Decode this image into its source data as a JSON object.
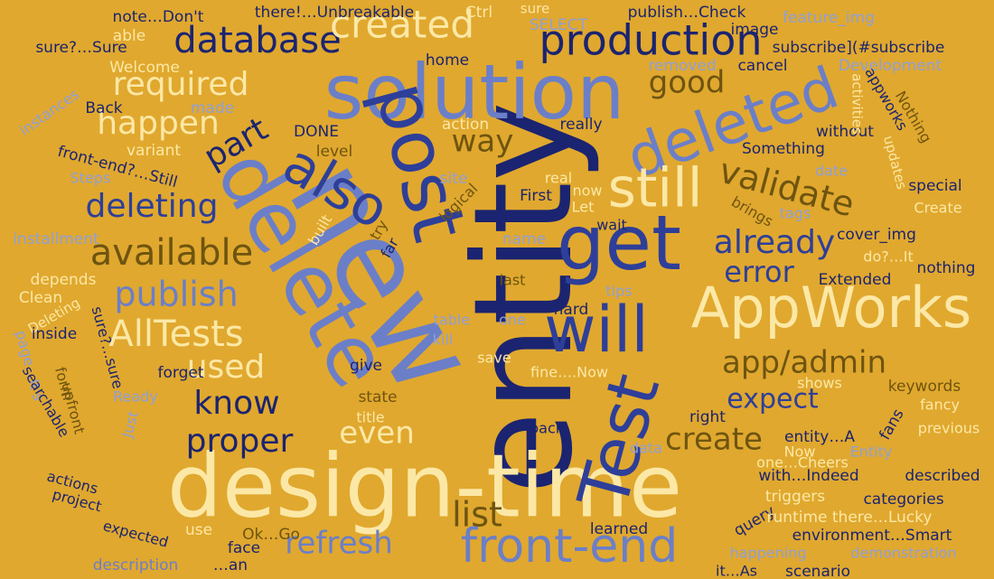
{
  "palette": {
    "background": "#E0A82E",
    "navy": "#1B2470",
    "blue": "#2E3F99",
    "periwinkle": "#6B7FC8",
    "cream": "#FCE8A6",
    "brown": "#6E5410",
    "light_blue": "#8FA0D8"
  },
  "words": [
    {
      "text": "entity",
      "color": "navy",
      "rot": -90
    },
    {
      "text": "design-time",
      "color": "cream",
      "rot": 0
    },
    {
      "text": "new",
      "color": "periwinkle",
      "rot": 60
    },
    {
      "text": "delete",
      "color": "periwinkle",
      "rot": 60
    },
    {
      "text": "solution",
      "color": "periwinkle",
      "rot": 0
    },
    {
      "text": "post",
      "color": "blue",
      "rot": 75
    },
    {
      "text": "Test",
      "color": "blue",
      "rot": -75
    },
    {
      "text": "get",
      "color": "blue",
      "rot": 0
    },
    {
      "text": "will",
      "color": "blue",
      "rot": 0
    },
    {
      "text": "AppWorks",
      "color": "cream",
      "rot": 0
    },
    {
      "text": "deleted",
      "color": "periwinkle",
      "rot": -20
    },
    {
      "text": "front-end",
      "color": "periwinkle",
      "rot": 0
    },
    {
      "text": "still",
      "color": "cream",
      "rot": 0
    },
    {
      "text": "also",
      "color": "blue",
      "rot": 30
    },
    {
      "text": "production",
      "color": "navy",
      "rot": 0
    },
    {
      "text": "database",
      "color": "navy",
      "rot": 0
    },
    {
      "text": "created",
      "color": "cream",
      "rot": 0
    },
    {
      "text": "required",
      "color": "cream",
      "rot": 0
    },
    {
      "text": "happen",
      "color": "cream",
      "rot": 0
    },
    {
      "text": "deleting",
      "color": "blue",
      "rot": 0
    },
    {
      "text": "available",
      "color": "brown",
      "rot": 0
    },
    {
      "text": "publish",
      "color": "periwinkle",
      "rot": 0
    },
    {
      "text": "AllTests",
      "color": "cream",
      "rot": 0
    },
    {
      "text": "used",
      "color": "cream",
      "rot": 0
    },
    {
      "text": "know",
      "color": "navy",
      "rot": 0
    },
    {
      "text": "proper",
      "color": "navy",
      "rot": 0
    },
    {
      "text": "part",
      "color": "navy",
      "rot": -30
    },
    {
      "text": "way",
      "color": "brown",
      "rot": 0
    },
    {
      "text": "validate",
      "color": "brown",
      "rot": 15
    },
    {
      "text": "already",
      "color": "blue",
      "rot": 0
    },
    {
      "text": "error",
      "color": "blue",
      "rot": 0
    },
    {
      "text": "app/admin",
      "color": "brown",
      "rot": 0
    },
    {
      "text": "expect",
      "color": "blue",
      "rot": 0
    },
    {
      "text": "create",
      "color": "brown",
      "rot": 0
    },
    {
      "text": "even",
      "color": "cream",
      "rot": 0
    },
    {
      "text": "list",
      "color": "brown",
      "rot": 0
    },
    {
      "text": "refresh",
      "color": "periwinkle",
      "rot": 0
    },
    {
      "text": "good",
      "color": "brown",
      "rot": 0
    },
    {
      "text": "note…Don't",
      "color": "navy",
      "rot": 0
    },
    {
      "text": "there!…Unbreakable",
      "color": "navy",
      "rot": 0
    },
    {
      "text": "Ctrl",
      "color": "cream",
      "rot": 0
    },
    {
      "text": "sure",
      "color": "cream",
      "rot": 0
    },
    {
      "text": "SELECT",
      "color": "light_blue",
      "rot": 0
    },
    {
      "text": "publish…Check",
      "color": "navy",
      "rot": 0
    },
    {
      "text": "feature_img",
      "color": "light_blue",
      "rot": 0
    },
    {
      "text": "image",
      "color": "navy",
      "rot": 0
    },
    {
      "text": "subscribe](#subscribe",
      "color": "navy",
      "rot": 0
    },
    {
      "text": "removed",
      "color": "light_blue",
      "rot": 0
    },
    {
      "text": "cancel",
      "color": "navy",
      "rot": 0
    },
    {
      "text": "Development",
      "color": "light_blue",
      "rot": 0
    },
    {
      "text": "sure?…Sure",
      "color": "navy",
      "rot": 0
    },
    {
      "text": "able",
      "color": "cream",
      "rot": 0
    },
    {
      "text": "Welcome",
      "color": "cream",
      "rot": 0
    },
    {
      "text": "home",
      "color": "navy",
      "rot": 0
    },
    {
      "text": "instances",
      "color": "light_blue",
      "rot": -35
    },
    {
      "text": "Back",
      "color": "navy",
      "rot": 0
    },
    {
      "text": "made",
      "color": "light_blue",
      "rot": 0
    },
    {
      "text": "DONE",
      "color": "navy",
      "rot": 0
    },
    {
      "text": "action",
      "color": "cream",
      "rot": 0
    },
    {
      "text": "really",
      "color": "navy",
      "rot": 0
    },
    {
      "text": "without",
      "color": "navy",
      "rot": 0
    },
    {
      "text": "activities",
      "color": "cream",
      "rot": 90
    },
    {
      "text": "appworks",
      "color": "navy",
      "rot": 60
    },
    {
      "text": "Nothing",
      "color": "brown",
      "rot": 60
    },
    {
      "text": "Something",
      "color": "navy",
      "rot": 0
    },
    {
      "text": "variant",
      "color": "cream",
      "rot": 0
    },
    {
      "text": "level",
      "color": "brown",
      "rot": 0
    },
    {
      "text": "front-end?…Still",
      "color": "navy",
      "rot": 15
    },
    {
      "text": "Steps",
      "color": "light_blue",
      "rot": 0
    },
    {
      "text": "site",
      "color": "light_blue",
      "rot": 0
    },
    {
      "text": "real",
      "color": "cream",
      "rot": 0
    },
    {
      "text": "now",
      "color": "cream",
      "rot": 0
    },
    {
      "text": "date",
      "color": "light_blue",
      "rot": 0
    },
    {
      "text": "updates",
      "color": "cream",
      "rot": 75
    },
    {
      "text": "special",
      "color": "navy",
      "rot": 0
    },
    {
      "text": "logical",
      "color": "brown",
      "rot": -45
    },
    {
      "text": "First",
      "color": "navy",
      "rot": 0
    },
    {
      "text": "Let",
      "color": "cream",
      "rot": 0
    },
    {
      "text": "brings",
      "color": "brown",
      "rot": 30
    },
    {
      "text": "tags",
      "color": "light_blue",
      "rot": 0
    },
    {
      "text": "Create",
      "color": "cream",
      "rot": 0
    },
    {
      "text": "try",
      "color": "brown",
      "rot": -60
    },
    {
      "text": "built",
      "color": "cream",
      "rot": -60
    },
    {
      "text": "installment",
      "color": "light_blue",
      "rot": 0
    },
    {
      "text": "wait",
      "color": "navy",
      "rot": 0
    },
    {
      "text": "name",
      "color": "light_blue",
      "rot": 0
    },
    {
      "text": "far",
      "color": "navy",
      "rot": -60
    },
    {
      "text": "cover_img",
      "color": "navy",
      "rot": 0
    },
    {
      "text": "do?…It",
      "color": "cream",
      "rot": 0
    },
    {
      "text": "nothing",
      "color": "navy",
      "rot": 0
    },
    {
      "text": "depends",
      "color": "cream",
      "rot": 0
    },
    {
      "text": "last",
      "color": "brown",
      "rot": 0
    },
    {
      "text": "Extended",
      "color": "navy",
      "rot": 0
    },
    {
      "text": "Clean",
      "color": "cream",
      "rot": 0
    },
    {
      "text": "tips",
      "color": "light_blue",
      "rot": 0
    },
    {
      "text": "Deleting",
      "color": "cream",
      "rot": -30
    },
    {
      "text": "inside",
      "color": "navy",
      "rot": 0
    },
    {
      "text": "hard",
      "color": "navy",
      "rot": 0
    },
    {
      "text": "table",
      "color": "light_blue",
      "rot": 0
    },
    {
      "text": "one",
      "color": "light_blue",
      "rot": 0
    },
    {
      "text": "kill",
      "color": "light_blue",
      "rot": 0
    },
    {
      "text": "sure?…sure",
      "color": "navy",
      "rot": 75
    },
    {
      "text": "save",
      "color": "cream",
      "rot": 0
    },
    {
      "text": "page…It's",
      "color": "light_blue",
      "rot": 75
    },
    {
      "text": "forget",
      "color": "navy",
      "rot": 0
    },
    {
      "text": "give",
      "color": "navy",
      "rot": 0
    },
    {
      "text": "fine….Now",
      "color": "cream",
      "rot": 0
    },
    {
      "text": "searchable",
      "color": "navy",
      "rot": 60
    },
    {
      "text": "form",
      "color": "brown",
      "rot": 75
    },
    {
      "text": "upfront",
      "color": "brown",
      "rot": 75
    },
    {
      "text": "Ready",
      "color": "light_blue",
      "rot": 0
    },
    {
      "text": "state",
      "color": "brown",
      "rot": 0
    },
    {
      "text": "shows",
      "color": "cream",
      "rot": 0
    },
    {
      "text": "keywords",
      "color": "brown",
      "rot": 0
    },
    {
      "text": "fancy",
      "color": "cream",
      "rot": 0
    },
    {
      "text": "title",
      "color": "cream",
      "rot": 0
    },
    {
      "text": "right",
      "color": "navy",
      "rot": 0
    },
    {
      "text": "fans",
      "color": "navy",
      "rot": -60
    },
    {
      "text": "previous",
      "color": "cream",
      "rot": 0
    },
    {
      "text": "Just",
      "color": "light_blue",
      "rot": -75
    },
    {
      "text": "back",
      "color": "navy",
      "rot": 0
    },
    {
      "text": "entity…A",
      "color": "navy",
      "rot": 0
    },
    {
      "text": "Entity",
      "color": "light_blue",
      "rot": 0
    },
    {
      "text": "Now",
      "color": "cream",
      "rot": 0
    },
    {
      "text": "data",
      "color": "light_blue",
      "rot": 0
    },
    {
      "text": "one…Cheers",
      "color": "cream",
      "rot": 0
    },
    {
      "text": "actions",
      "color": "navy",
      "rot": 15
    },
    {
      "text": "with…Indeed",
      "color": "navy",
      "rot": 0
    },
    {
      "text": "described",
      "color": "navy",
      "rot": 0
    },
    {
      "text": "project",
      "color": "navy",
      "rot": 15
    },
    {
      "text": "triggers",
      "color": "cream",
      "rot": 0
    },
    {
      "text": "categories",
      "color": "navy",
      "rot": 0
    },
    {
      "text": "query",
      "color": "navy",
      "rot": -30
    },
    {
      "text": "runtime there…Lucky",
      "color": "cream",
      "rot": 0
    },
    {
      "text": "learned",
      "color": "navy",
      "rot": 0
    },
    {
      "text": "expected",
      "color": "navy",
      "rot": 15
    },
    {
      "text": "use",
      "color": "cream",
      "rot": 0
    },
    {
      "text": "Ok…Go",
      "color": "brown",
      "rot": 0
    },
    {
      "text": "face",
      "color": "navy",
      "rot": 0
    },
    {
      "text": "environment…Smart",
      "color": "navy",
      "rot": 0
    },
    {
      "text": "happening",
      "color": "light_blue",
      "rot": 0
    },
    {
      "text": "demonstration",
      "color": "light_blue",
      "rot": 0
    },
    {
      "text": "description",
      "color": "periwinkle",
      "rot": 0
    },
    {
      "text": "…an",
      "color": "navy",
      "rot": 0
    },
    {
      "text": "it…As",
      "color": "navy",
      "rot": 0
    },
    {
      "text": "scenario",
      "color": "navy",
      "rot": 0
    }
  ]
}
